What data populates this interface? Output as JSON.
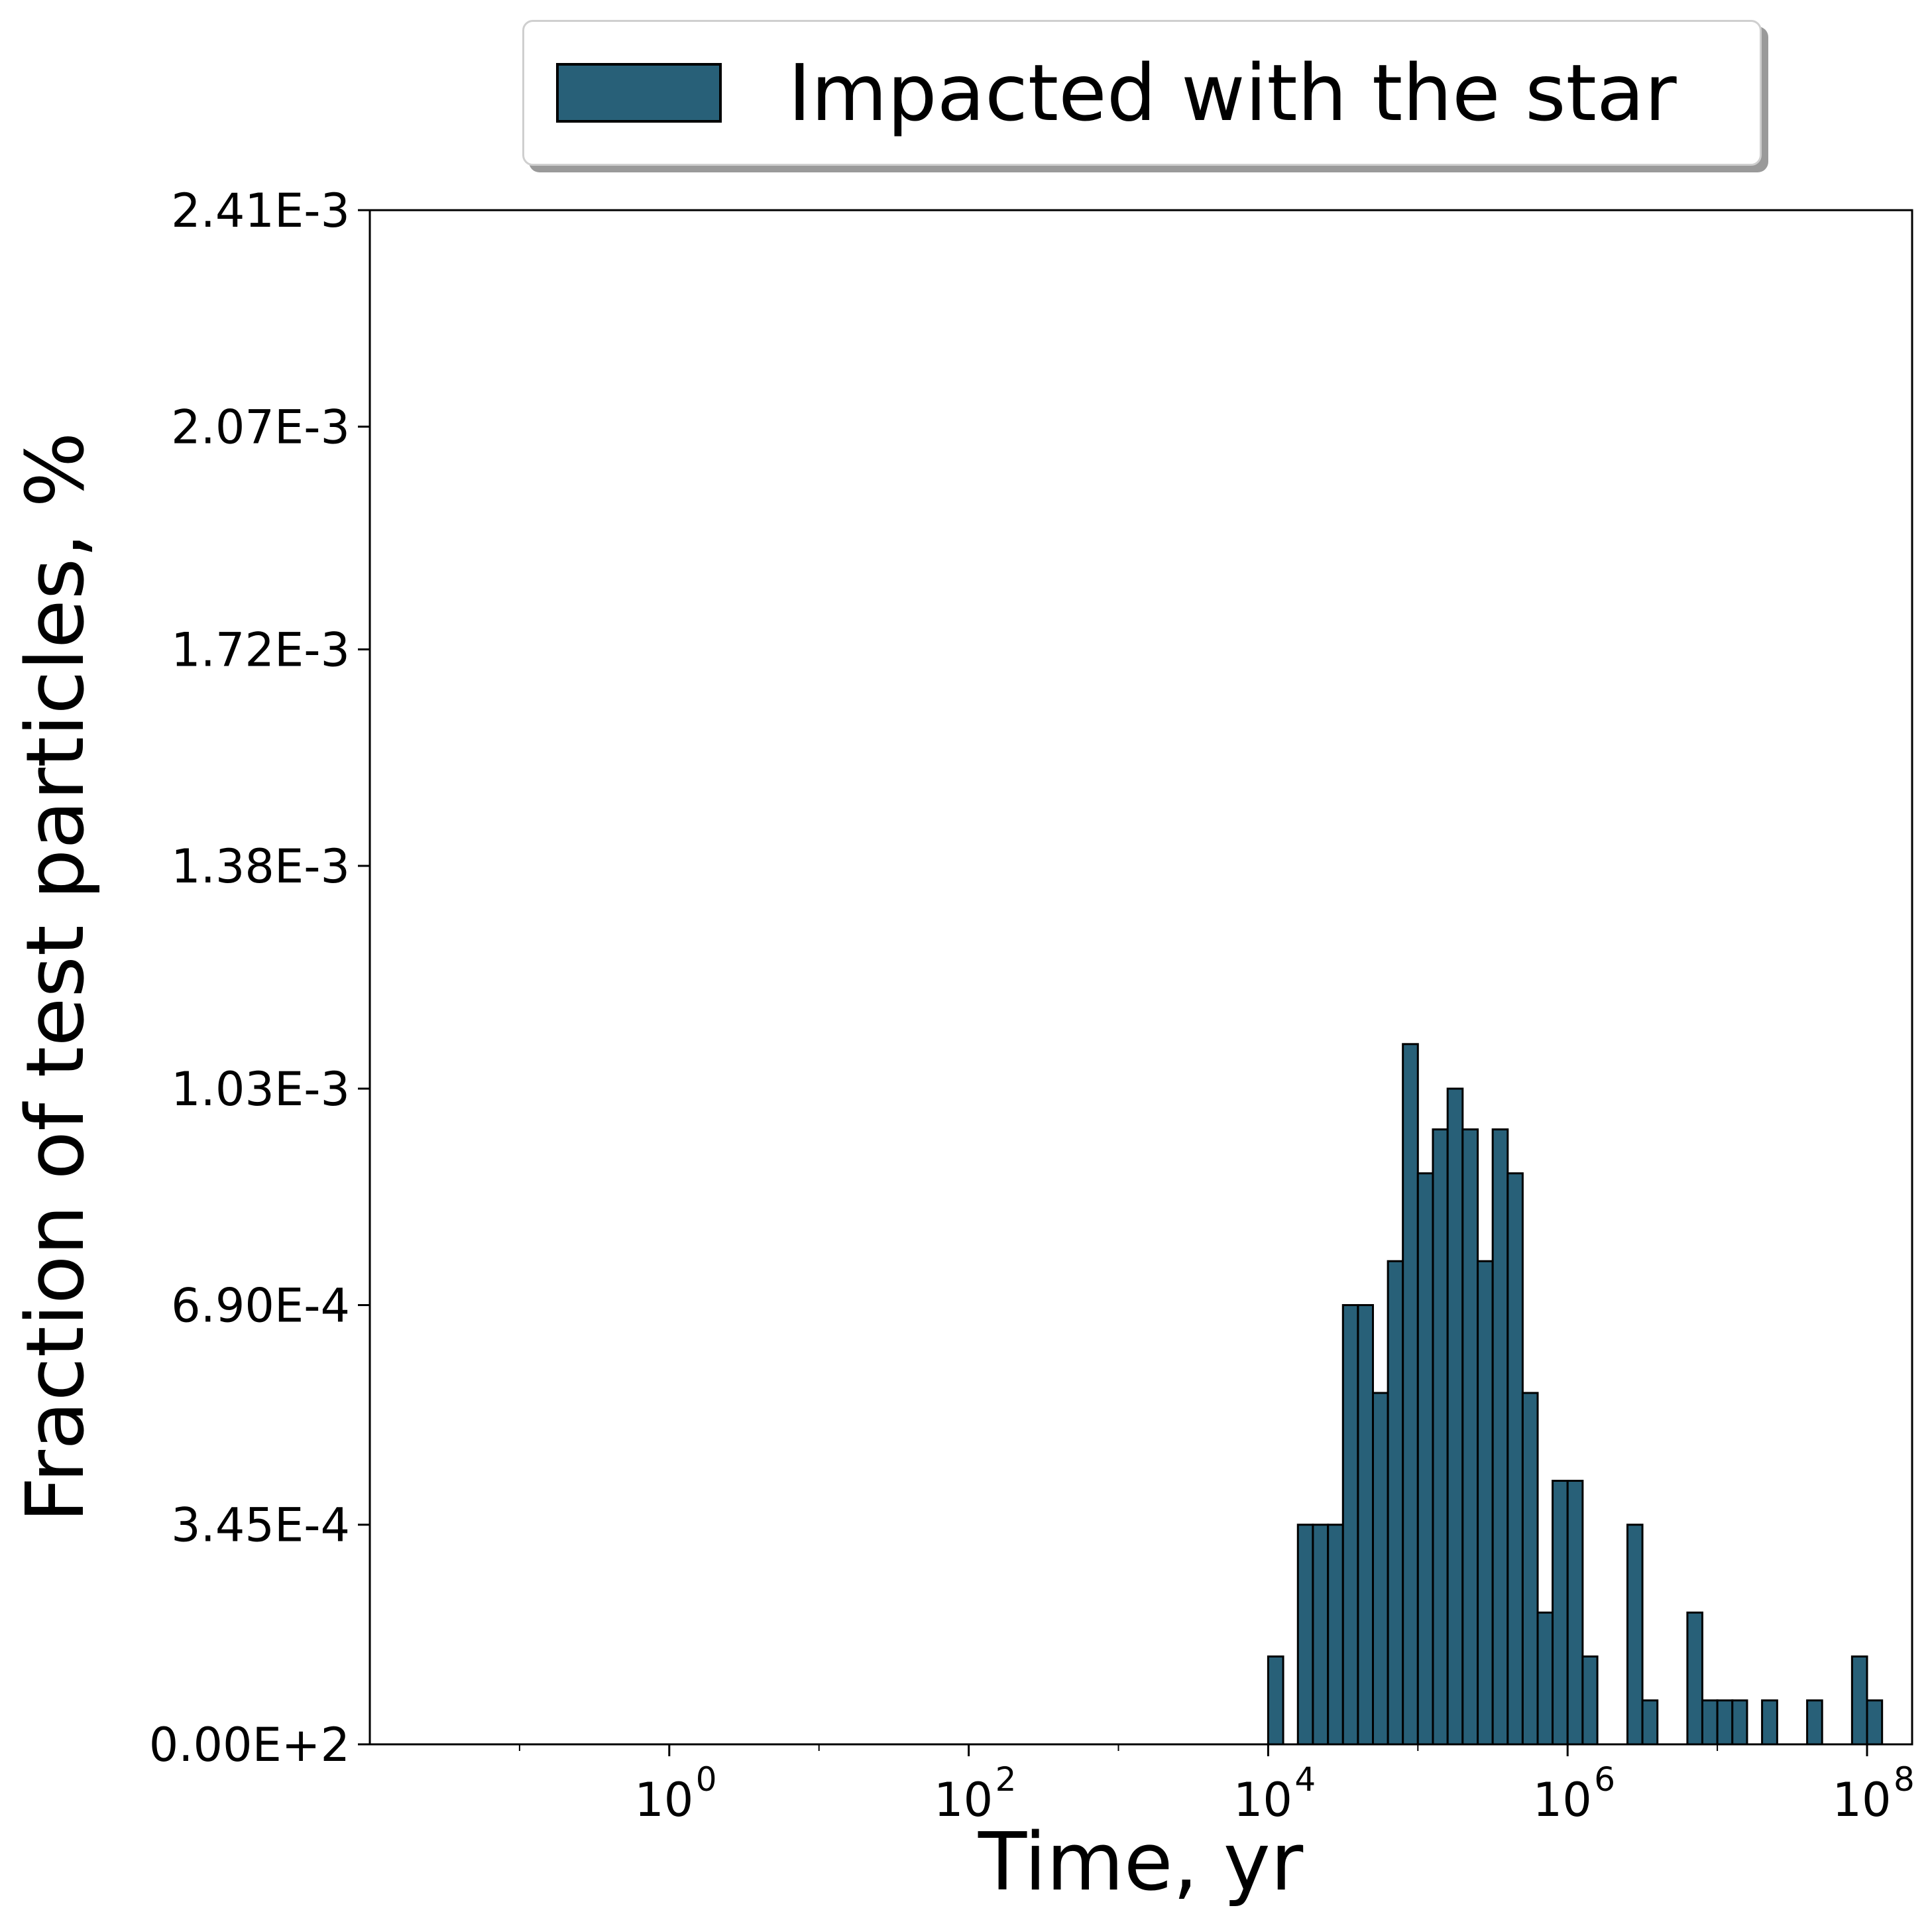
{
  "chart_data": {
    "type": "bar",
    "xlabel": "Time, yr",
    "ylabel": "Fraction of test particles, %",
    "x_scale": "log",
    "xlim": [
      0.01,
      200000000
    ],
    "ylim": [
      0,
      0.00241
    ],
    "x_ticks": [
      {
        "value": 1,
        "base": "10",
        "exp": "0"
      },
      {
        "value": 100,
        "base": "10",
        "exp": "2"
      },
      {
        "value": 10000,
        "base": "10",
        "exp": "4"
      },
      {
        "value": 1000000,
        "base": "10",
        "exp": "6"
      },
      {
        "value": 100000000,
        "base": "10",
        "exp": "8"
      }
    ],
    "y_ticks": [
      {
        "value": 0,
        "label": "0.00E+2"
      },
      {
        "value": 0.000345,
        "label": "3.45E-4"
      },
      {
        "value": 0.00069,
        "label": "6.90E-4"
      },
      {
        "value": 0.00103,
        "label": "1.03E-3"
      },
      {
        "value": 0.00138,
        "label": "1.38E-3"
      },
      {
        "value": 0.00172,
        "label": "1.72E-3"
      },
      {
        "value": 0.00207,
        "label": "2.07E-3"
      },
      {
        "value": 0.00241,
        "label": "2.41E-3"
      }
    ],
    "legend": {
      "position": "top-center",
      "entries": [
        "Impacted with the star"
      ]
    },
    "series": [
      {
        "name": "Impacted with the star",
        "color": "#286078",
        "edge_color": "#000000",
        "bins": [
          {
            "x0": 10000,
            "x1": 12600,
            "value": 0.000138
          },
          {
            "x0": 15800,
            "x1": 19900,
            "value": 0.000345
          },
          {
            "x0": 19900,
            "x1": 25100,
            "value": 0.000345
          },
          {
            "x0": 25100,
            "x1": 31600,
            "value": 0.000345
          },
          {
            "x0": 31600,
            "x1": 39800,
            "value": 0.00069
          },
          {
            "x0": 39800,
            "x1": 50100,
            "value": 0.00069
          },
          {
            "x0": 50100,
            "x1": 63100,
            "value": 0.000552
          },
          {
            "x0": 63100,
            "x1": 79400,
            "value": 0.000759
          },
          {
            "x0": 79400,
            "x1": 100000,
            "value": 0.0011
          },
          {
            "x0": 100000,
            "x1": 126000,
            "value": 0.000897
          },
          {
            "x0": 126000,
            "x1": 158000,
            "value": 0.000966
          },
          {
            "x0": 158000,
            "x1": 199000,
            "value": 0.00103
          },
          {
            "x0": 199000,
            "x1": 251000,
            "value": 0.000966
          },
          {
            "x0": 251000,
            "x1": 316000,
            "value": 0.000759
          },
          {
            "x0": 316000,
            "x1": 398000,
            "value": 0.000966
          },
          {
            "x0": 398000,
            "x1": 501000,
            "value": 0.000897
          },
          {
            "x0": 501000,
            "x1": 631000,
            "value": 0.000552
          },
          {
            "x0": 631000,
            "x1": 794000,
            "value": 0.000207
          },
          {
            "x0": 794000,
            "x1": 1000000,
            "value": 0.000414
          },
          {
            "x0": 1000000,
            "x1": 1260000,
            "value": 0.000414
          },
          {
            "x0": 1260000,
            "x1": 1580000,
            "value": 0.000138
          },
          {
            "x0": 2510000,
            "x1": 3160000,
            "value": 0.000345
          },
          {
            "x0": 3160000,
            "x1": 3980000,
            "value": 6.9e-05
          },
          {
            "x0": 6310000,
            "x1": 7940000,
            "value": 0.000207
          },
          {
            "x0": 7940000,
            "x1": 10000000,
            "value": 6.9e-05
          },
          {
            "x0": 10000000,
            "x1": 12600000,
            "value": 6.9e-05
          },
          {
            "x0": 12600000,
            "x1": 15800000,
            "value": 6.9e-05
          },
          {
            "x0": 19900000,
            "x1": 25100000,
            "value": 6.9e-05
          },
          {
            "x0": 39800000,
            "x1": 50100000,
            "value": 6.9e-05
          },
          {
            "x0": 79400000,
            "x1": 100000000,
            "value": 0.000138
          },
          {
            "x0": 100000000,
            "x1": 126000000,
            "value": 6.9e-05
          }
        ]
      }
    ]
  }
}
